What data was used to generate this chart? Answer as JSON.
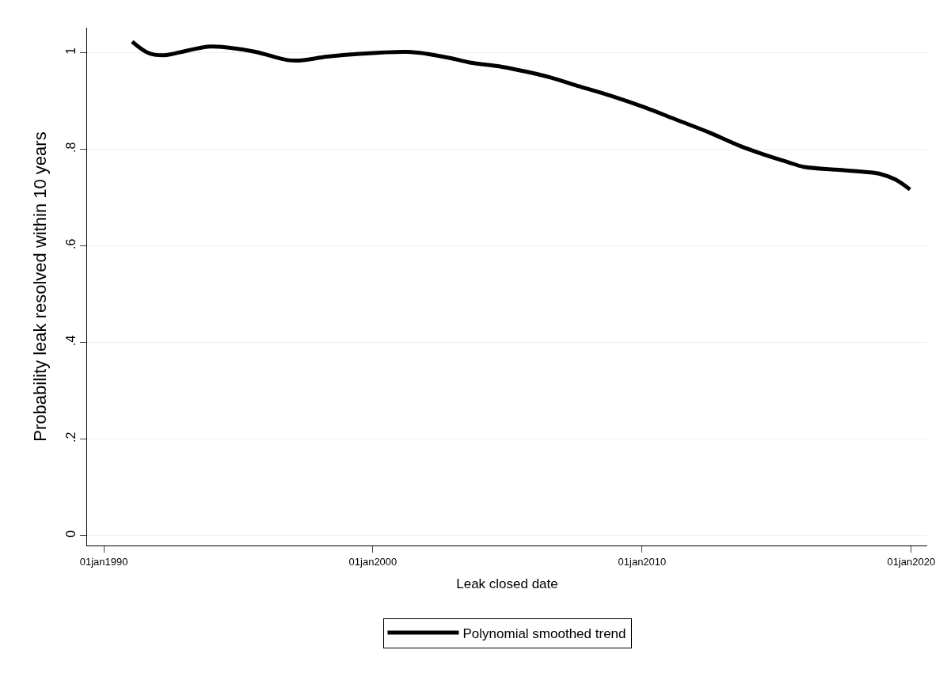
{
  "chart_data": {
    "type": "line",
    "xlabel": "Leak closed date",
    "ylabel": "Probability leak resolved within 10 years",
    "x": [
      "1991-01-22",
      "1991-08-25",
      "1992-03-28",
      "1993-02-17",
      "1993-12-05",
      "1994-08-07",
      "1995-08-22",
      "1996-10-27",
      "1997-04-06",
      "1998-04-20",
      "1999-07-01",
      "2001-04-10",
      "2002-01-01",
      "2002-11-24",
      "2003-08-08",
      "2004-10-19",
      "2005-09-13",
      "2006-08-08",
      "2007-09-13",
      "2008-11-24",
      "2010-02-06",
      "2011-04-20",
      "2012-07-01",
      "2013-08-08",
      "2014-07-02",
      "2015-05-27",
      "2016-01-01",
      "2017-03-15",
      "2018-05-27",
      "2018-10-19",
      "2019-05-27",
      "2019-12-16"
    ],
    "series": [
      {
        "name": "Polynomial smoothed trend",
        "color": "#000000",
        "values": [
          1.023,
          1.0,
          0.995,
          1.005,
          1.013,
          1.011,
          1.002,
          0.985,
          0.984,
          0.992,
          0.998,
          1.002,
          0.998,
          0.989,
          0.98,
          0.971,
          0.961,
          0.949,
          0.93,
          0.91,
          0.887,
          0.861,
          0.835,
          0.808,
          0.79,
          0.774,
          0.764,
          0.758,
          0.753,
          0.75,
          0.738,
          0.717
        ]
      }
    ],
    "xlim": [
      "1989-05-20",
      "2020-08-05"
    ],
    "xticks": [
      {
        "value": "1990-01-01",
        "label": "01jan1990"
      },
      {
        "value": "2000-01-01",
        "label": "01jan2000"
      },
      {
        "value": "2010-01-01",
        "label": "01jan2010"
      },
      {
        "value": "2020-01-01",
        "label": "01jan2020"
      }
    ],
    "ylim": [
      -0.02,
      1.052
    ],
    "yticks": [
      {
        "value": 0,
        "label": "0"
      },
      {
        "value": 0.2,
        "label": ".2"
      },
      {
        "value": 0.4,
        "label": ".4"
      },
      {
        "value": 0.6,
        "label": ".6"
      },
      {
        "value": 0.8,
        "label": ".8"
      },
      {
        "value": 1,
        "label": "1"
      }
    ],
    "grid": "y",
    "legend": "bottom",
    "marker": "none",
    "line_style": "solid"
  }
}
